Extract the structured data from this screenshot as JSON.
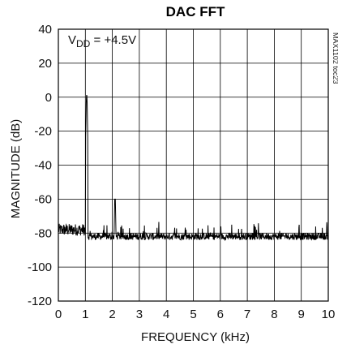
{
  "chart_data": {
    "type": "line",
    "title": "DAC FFT",
    "xlabel": "FREQUENCY (kHz)",
    "ylabel": "MAGNITUDE (dB)",
    "xlim": [
      0,
      10
    ],
    "ylim": [
      -120,
      40
    ],
    "x_ticks": [
      "0",
      "1",
      "2",
      "3",
      "4",
      "5",
      "6",
      "7",
      "8",
      "9",
      "10"
    ],
    "y_ticks": [
      "40",
      "20",
      "0",
      "-20",
      "-40",
      "-60",
      "-80",
      "-100",
      "-120"
    ],
    "grid": true,
    "annotation": {
      "prefix": "V",
      "subscript": "DD",
      "suffix": " = +4.5V"
    },
    "watermark": "MAX1102 toc23",
    "series": [
      {
        "peaks": [
          {
            "x": 1.05,
            "y": 1
          },
          {
            "x": 2.1,
            "y": -60
          }
        ],
        "noise_floor_below_fundamental": -78,
        "noise_floor_above_fundamental": -82,
        "x_start": 0,
        "x_end": 10
      }
    ]
  }
}
